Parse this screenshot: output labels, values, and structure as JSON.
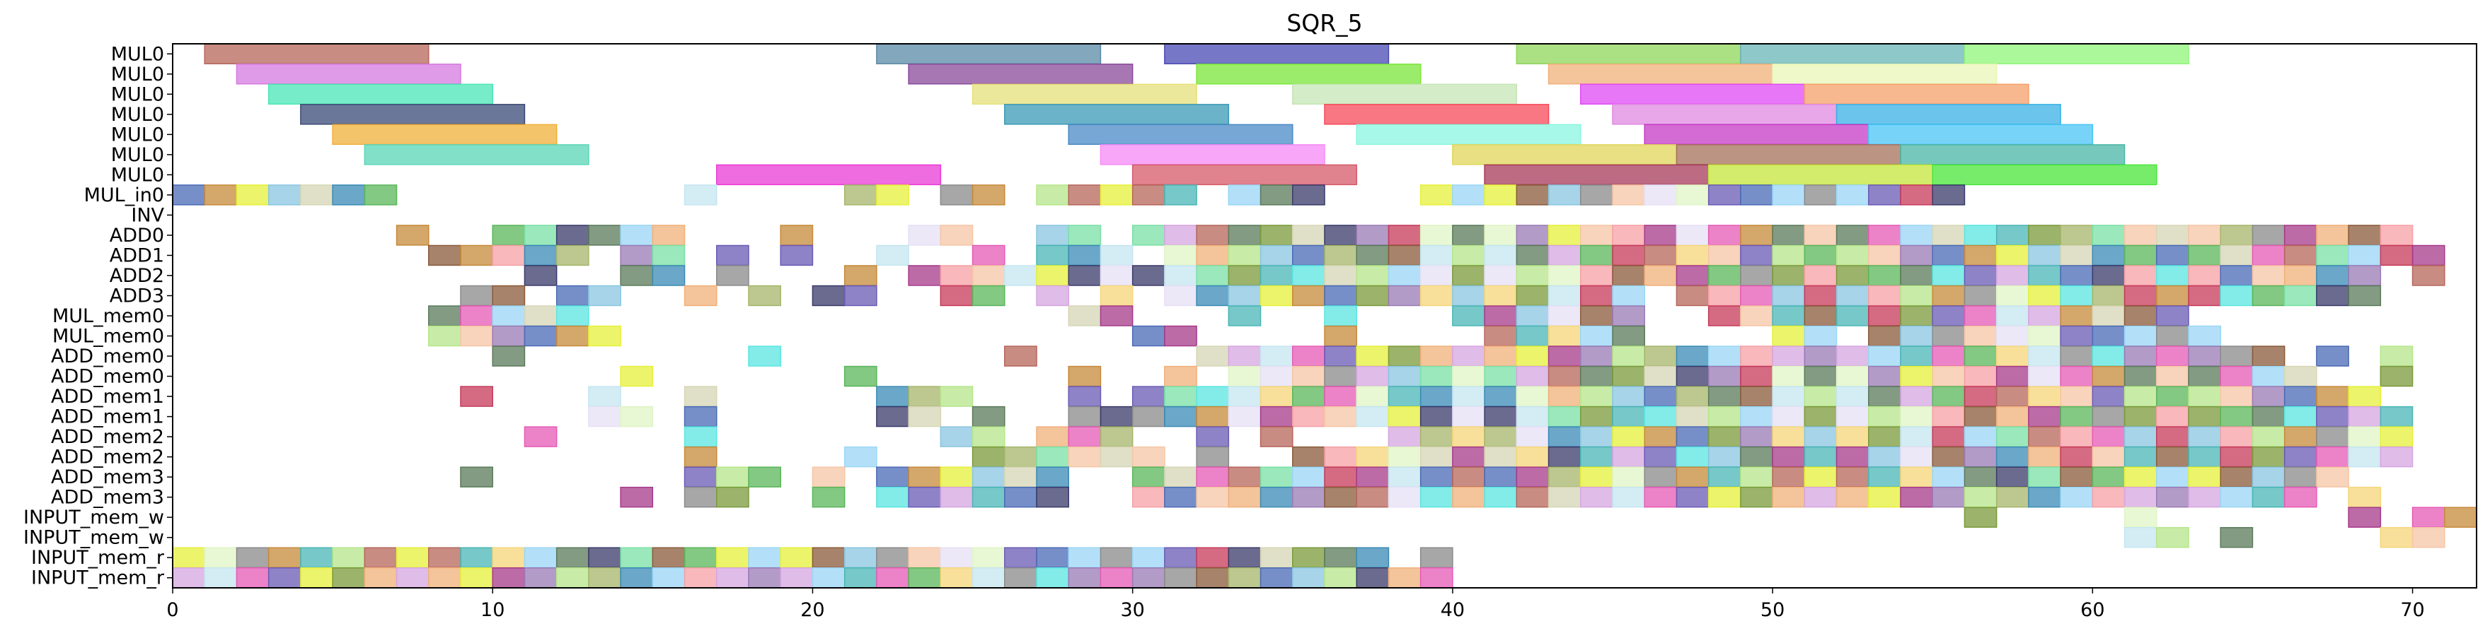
{
  "chart_data": {
    "type": "gantt",
    "title": "SQR_5",
    "xlabel": "",
    "ylabel": "",
    "xlim": [
      0,
      72
    ],
    "x_ticks": [
      0,
      10,
      20,
      30,
      40,
      50,
      60,
      70
    ],
    "grid": false,
    "legend": "none",
    "categories": [
      "MUL0",
      "MUL0",
      "MUL0",
      "MUL0",
      "MUL0",
      "MUL0",
      "MUL0",
      "MUL_in0",
      "INV",
      "ADD0",
      "ADD1",
      "ADD2",
      "ADD3",
      "MUL_mem0",
      "MUL_mem0",
      "ADD_mem0",
      "ADD_mem0",
      "ADD_mem1",
      "ADD_mem1",
      "ADD_mem2",
      "ADD_mem2",
      "ADD_mem3",
      "ADD_mem3",
      "INPUT_mem_w",
      "INPUT_mem_w",
      "INPUT_mem_r",
      "INPUT_mem_r"
    ],
    "long_bars": [
      {
        "row": 0,
        "start": 1,
        "end": 8,
        "color": "#b5655a"
      },
      {
        "row": 0,
        "start": 22,
        "end": 29,
        "color": "#5a8aa5"
      },
      {
        "row": 0,
        "start": 31,
        "end": 38,
        "color": "#4a4ab5"
      },
      {
        "row": 0,
        "start": 42,
        "end": 49,
        "color": "#8fd65a"
      },
      {
        "row": 0,
        "start": 49,
        "end": 56,
        "color": "#6ab5b5"
      },
      {
        "row": 0,
        "start": 56,
        "end": 63,
        "color": "#8ff57a"
      },
      {
        "row": 1,
        "start": 2,
        "end": 9,
        "color": "#d67ae0"
      },
      {
        "row": 1,
        "start": 23,
        "end": 30,
        "color": "#8a4a9a"
      },
      {
        "row": 1,
        "start": 32,
        "end": 39,
        "color": "#7ae63a"
      },
      {
        "row": 1,
        "start": 43,
        "end": 50,
        "color": "#f0b07a"
      },
      {
        "row": 1,
        "start": 50,
        "end": 57,
        "color": "#e8f5b5"
      },
      {
        "row": 2,
        "start": 3,
        "end": 10,
        "color": "#4ae6b5"
      },
      {
        "row": 2,
        "start": 25,
        "end": 32,
        "color": "#e6e07a"
      },
      {
        "row": 2,
        "start": 35,
        "end": 42,
        "color": "#c5e6b5"
      },
      {
        "row": 2,
        "start": 44,
        "end": 51,
        "color": "#e04af5"
      },
      {
        "row": 2,
        "start": 51,
        "end": 58,
        "color": "#f5a06a"
      },
      {
        "row": 3,
        "start": 4,
        "end": 11,
        "color": "#3a4a75"
      },
      {
        "row": 3,
        "start": 26,
        "end": 33,
        "color": "#3a9ab5"
      },
      {
        "row": 3,
        "start": 36,
        "end": 43,
        "color": "#f54a5a"
      },
      {
        "row": 3,
        "start": 45,
        "end": 52,
        "color": "#e08ae0"
      },
      {
        "row": 3,
        "start": 52,
        "end": 59,
        "color": "#3ab0e6"
      },
      {
        "row": 4,
        "start": 5,
        "end": 12,
        "color": "#f0b03a"
      },
      {
        "row": 4,
        "start": 28,
        "end": 35,
        "color": "#4a8ac5"
      },
      {
        "row": 4,
        "start": 37,
        "end": 44,
        "color": "#8af5e0"
      },
      {
        "row": 4,
        "start": 46,
        "end": 53,
        "color": "#c53ac5"
      },
      {
        "row": 4,
        "start": 53,
        "end": 60,
        "color": "#4ac5f5"
      },
      {
        "row": 5,
        "start": 6,
        "end": 13,
        "color": "#5ad6b5"
      },
      {
        "row": 5,
        "start": 29,
        "end": 36,
        "color": "#f58af5"
      },
      {
        "row": 5,
        "start": 40,
        "end": 47,
        "color": "#e0d65a"
      },
      {
        "row": 5,
        "start": 47,
        "end": 54,
        "color": "#a5705a"
      },
      {
        "row": 5,
        "start": 54,
        "end": 61,
        "color": "#4ab5a5"
      },
      {
        "row": 6,
        "start": 17,
        "end": 24,
        "color": "#ea3ad6"
      },
      {
        "row": 6,
        "start": 30,
        "end": 37,
        "color": "#d65a6a"
      },
      {
        "row": 6,
        "start": 41,
        "end": 48,
        "color": "#a53a5a"
      },
      {
        "row": 6,
        "start": 48,
        "end": 55,
        "color": "#c5e63a"
      },
      {
        "row": 6,
        "start": 55,
        "end": 62,
        "color": "#4ae63a"
      }
    ],
    "short_bar_rows": [
      {
        "row": 7,
        "cells": [
          0,
          1,
          2,
          3,
          4,
          5,
          6,
          16,
          21,
          22,
          24,
          25,
          27,
          28,
          29,
          30,
          31,
          33,
          34,
          35,
          39,
          40,
          41,
          42,
          43,
          44,
          45,
          46,
          47,
          48,
          49,
          50,
          51,
          52,
          53,
          54,
          55
        ]
      },
      {
        "row": 9,
        "cells": [
          7,
          10,
          11,
          12,
          13,
          14,
          15,
          19,
          23,
          24,
          27,
          28,
          30,
          31,
          32,
          33,
          34,
          35,
          36,
          37,
          38,
          39,
          40,
          41,
          42,
          43,
          44,
          45,
          46,
          47,
          48,
          49,
          50,
          51,
          52,
          53,
          54,
          55,
          56,
          57,
          58,
          59,
          60,
          61,
          62,
          63,
          64,
          65,
          66,
          67,
          68,
          69
        ]
      },
      {
        "row": 10,
        "cells": [
          8,
          9,
          10,
          11,
          12,
          14,
          15,
          17,
          19,
          22,
          25,
          27,
          28,
          29,
          31,
          32,
          33,
          34,
          35,
          36,
          37,
          38,
          39,
          40,
          41,
          42,
          43,
          44,
          45,
          46,
          47,
          48,
          49,
          50,
          51,
          52,
          53,
          54,
          55,
          56,
          57,
          58,
          59,
          60,
          61,
          62,
          63,
          64,
          65,
          66,
          67,
          68,
          69,
          70
        ]
      },
      {
        "row": 11,
        "cells": [
          11,
          14,
          15,
          17,
          21,
          23,
          24,
          25,
          26,
          27,
          28,
          29,
          30,
          31,
          32,
          33,
          34,
          35,
          36,
          37,
          38,
          39,
          40,
          41,
          42,
          43,
          44,
          45,
          46,
          47,
          48,
          49,
          50,
          51,
          52,
          53,
          54,
          55,
          56,
          57,
          58,
          59,
          60,
          61,
          62,
          63,
          64,
          65,
          66,
          67,
          68,
          70
        ]
      },
      {
        "row": 12,
        "cells": [
          9,
          10,
          12,
          13,
          16,
          18,
          20,
          21,
          24,
          25,
          27,
          29,
          31,
          32,
          33,
          34,
          35,
          36,
          37,
          38,
          39,
          40,
          41,
          42,
          43,
          44,
          45,
          47,
          48,
          49,
          50,
          51,
          52,
          53,
          54,
          55,
          56,
          57,
          58,
          59,
          60,
          61,
          62,
          63,
          64,
          65,
          66,
          67,
          68
        ]
      },
      {
        "row": 13,
        "cells": [
          8,
          9,
          10,
          11,
          12,
          28,
          29,
          33,
          36,
          40,
          41,
          42,
          43,
          44,
          45,
          48,
          49,
          50,
          51,
          52,
          53,
          54,
          55,
          56,
          57,
          58,
          59,
          60,
          61,
          62
        ]
      },
      {
        "row": 14,
        "cells": [
          8,
          9,
          10,
          11,
          12,
          13,
          30,
          31,
          36,
          41,
          42,
          43,
          44,
          45,
          50,
          51,
          53,
          54,
          55,
          56,
          57,
          58,
          59,
          60,
          61,
          62,
          63
        ]
      },
      {
        "row": 15,
        "cells": [
          10,
          18,
          26,
          32,
          33,
          34,
          35,
          36,
          37,
          38,
          39,
          40,
          41,
          42,
          43,
          44,
          45,
          46,
          47,
          48,
          49,
          50,
          51,
          52,
          53,
          54,
          55,
          56,
          57,
          58,
          59,
          60,
          61,
          62,
          63,
          64,
          65,
          67,
          69
        ]
      },
      {
        "row": 16,
        "cells": [
          14,
          21,
          28,
          31,
          33,
          34,
          35,
          36,
          37,
          38,
          39,
          40,
          41,
          42,
          43,
          44,
          45,
          46,
          47,
          48,
          49,
          50,
          51,
          52,
          53,
          54,
          55,
          56,
          57,
          58,
          59,
          60,
          61,
          62,
          63,
          64,
          65,
          66,
          69
        ]
      },
      {
        "row": 17,
        "cells": [
          9,
          13,
          16,
          22,
          23,
          24,
          28,
          30,
          31,
          32,
          33,
          34,
          35,
          36,
          37,
          38,
          39,
          40,
          41,
          42,
          43,
          44,
          45,
          46,
          47,
          48,
          49,
          50,
          51,
          52,
          53,
          54,
          55,
          56,
          57,
          58,
          59,
          60,
          61,
          62,
          63,
          64,
          65,
          66,
          67,
          68
        ]
      },
      {
        "row": 18,
        "cells": [
          13,
          14,
          16,
          22,
          23,
          25,
          28,
          29,
          30,
          31,
          32,
          33,
          34,
          35,
          36,
          37,
          38,
          39,
          40,
          41,
          42,
          43,
          44,
          45,
          46,
          47,
          48,
          49,
          50,
          51,
          52,
          53,
          54,
          55,
          56,
          57,
          58,
          59,
          60,
          61,
          62,
          63,
          64,
          65,
          66,
          67,
          68,
          69
        ]
      },
      {
        "row": 19,
        "cells": [
          11,
          16,
          24,
          25,
          27,
          28,
          29,
          32,
          34,
          38,
          39,
          40,
          41,
          42,
          43,
          44,
          45,
          46,
          47,
          48,
          49,
          50,
          51,
          52,
          53,
          54,
          55,
          56,
          57,
          58,
          59,
          60,
          61,
          62,
          63,
          64,
          65,
          66,
          67,
          68,
          69
        ]
      },
      {
        "row": 20,
        "cells": [
          16,
          21,
          25,
          26,
          27,
          28,
          29,
          30,
          32,
          35,
          36,
          37,
          38,
          39,
          40,
          41,
          42,
          43,
          44,
          45,
          46,
          47,
          48,
          49,
          50,
          51,
          52,
          53,
          54,
          55,
          56,
          57,
          58,
          59,
          60,
          61,
          62,
          63,
          64,
          65,
          66,
          67,
          68,
          69
        ]
      },
      {
        "row": 21,
        "cells": [
          9,
          16,
          17,
          18,
          20,
          22,
          23,
          24,
          25,
          26,
          27,
          30,
          31,
          32,
          33,
          34,
          35,
          36,
          37,
          38,
          39,
          40,
          41,
          42,
          43,
          44,
          45,
          46,
          47,
          48,
          49,
          50,
          51,
          52,
          53,
          54,
          55,
          56,
          57,
          58,
          59,
          60,
          61,
          62,
          63,
          64,
          65,
          66,
          67
        ]
      },
      {
        "row": 22,
        "cells": [
          14,
          16,
          17,
          20,
          22,
          23,
          24,
          25,
          26,
          27,
          30,
          31,
          32,
          33,
          34,
          35,
          36,
          37,
          38,
          39,
          40,
          41,
          42,
          43,
          44,
          45,
          46,
          47,
          48,
          49,
          50,
          51,
          52,
          53,
          54,
          55,
          56,
          57,
          58,
          59,
          60,
          61,
          62,
          63,
          64,
          65,
          66,
          68
        ]
      },
      {
        "row": 23,
        "cells": [
          56,
          61,
          68,
          70,
          71
        ]
      },
      {
        "row": 24,
        "cells": [
          61,
          62,
          64,
          69,
          70
        ]
      },
      {
        "row": 25,
        "cells": [
          0,
          1,
          2,
          3,
          4,
          5,
          6,
          7,
          8,
          9,
          10,
          11,
          12,
          13,
          14,
          15,
          16,
          17,
          18,
          19,
          20,
          21,
          22,
          23,
          24,
          25,
          26,
          27,
          28,
          29,
          30,
          31,
          32,
          33,
          34,
          35,
          36,
          37,
          39
        ]
      },
      {
        "row": 26,
        "cells": [
          0,
          1,
          2,
          3,
          4,
          5,
          6,
          7,
          8,
          9,
          10,
          11,
          12,
          13,
          14,
          15,
          16,
          17,
          18,
          19,
          20,
          21,
          22,
          23,
          24,
          25,
          26,
          27,
          28,
          29,
          30,
          31,
          32,
          33,
          34,
          35,
          36,
          37,
          38,
          39
        ]
      }
    ]
  }
}
